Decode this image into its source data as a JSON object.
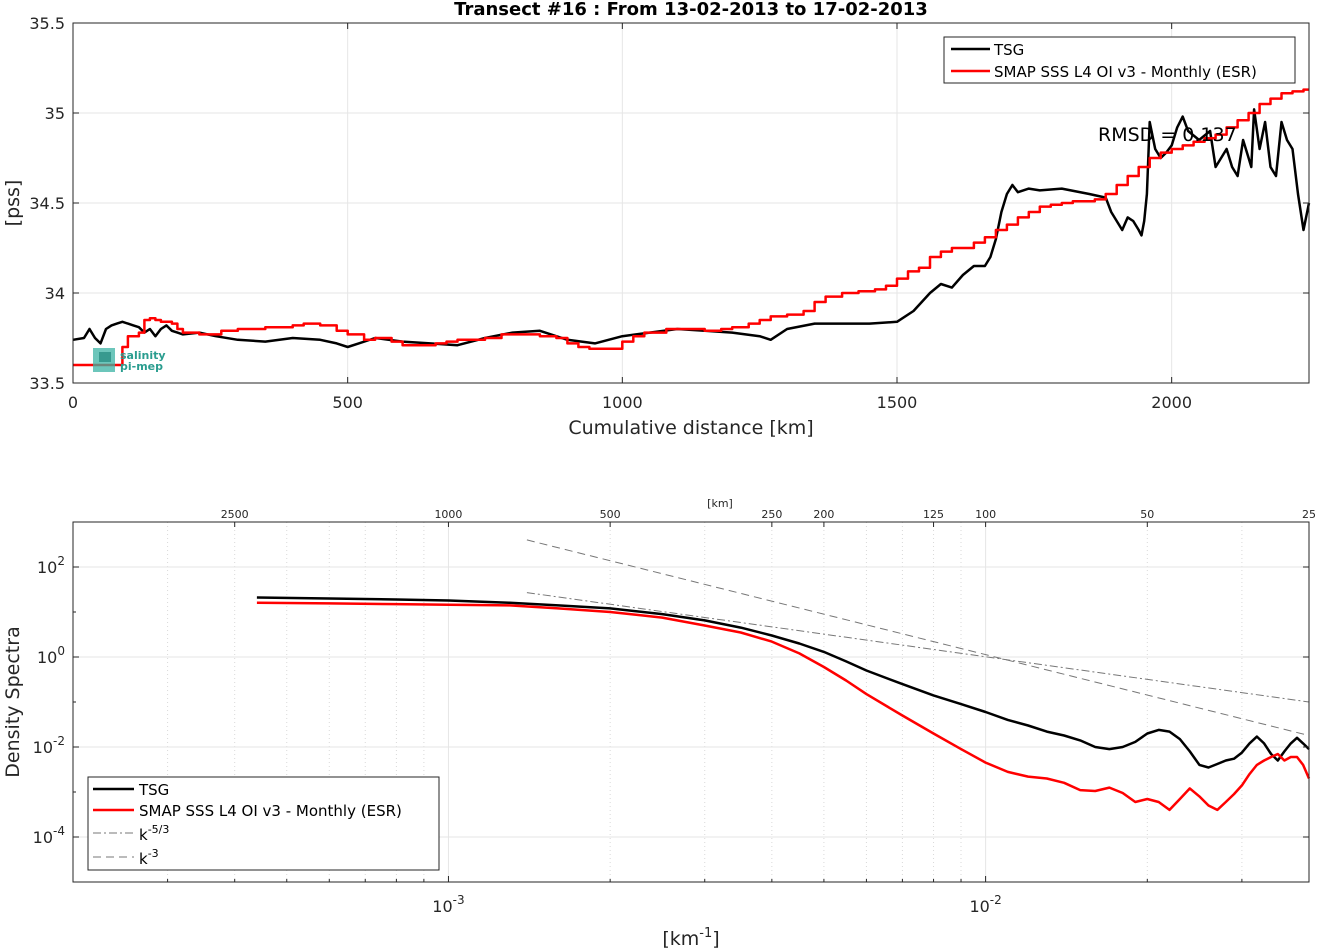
{
  "figure": {
    "background": "#ffffff"
  },
  "chart_data": [
    {
      "type": "line",
      "title": "Transect #16 : From 13-02-2013 to 17-02-2013",
      "xlabel": "Cumulative distance [km]",
      "ylabel": "[pss]",
      "xlim": [
        0,
        2250
      ],
      "ylim": [
        33.5,
        35.5
      ],
      "xticks": [
        0,
        500,
        1000,
        1500,
        2000
      ],
      "yticks": [
        33.5,
        34,
        34.5,
        35,
        35.5
      ],
      "grid": true,
      "legend_position": "top-right",
      "annotation": "RMSD = 0.137",
      "logo_text": [
        "salinity",
        "pi-mep"
      ],
      "series": [
        {
          "name": "TSG",
          "color": "#000000",
          "style": "solid",
          "x": [
            0,
            20,
            30,
            40,
            50,
            60,
            70,
            80,
            90,
            100,
            110,
            120,
            130,
            140,
            150,
            160,
            170,
            180,
            190,
            200,
            230,
            260,
            300,
            350,
            400,
            450,
            480,
            500,
            520,
            550,
            600,
            650,
            700,
            750,
            800,
            850,
            900,
            950,
            1000,
            1050,
            1100,
            1150,
            1200,
            1250,
            1270,
            1300,
            1350,
            1400,
            1450,
            1500,
            1530,
            1560,
            1580,
            1600,
            1620,
            1640,
            1660,
            1670,
            1680,
            1690,
            1700,
            1710,
            1720,
            1740,
            1760,
            1800,
            1850,
            1880,
            1890,
            1900,
            1910,
            1920,
            1930,
            1940,
            1945,
            1950,
            1955,
            1960,
            1970,
            1980,
            1990,
            2000,
            2010,
            2020,
            2030,
            2050,
            2070,
            2080,
            2090,
            2100,
            2110,
            2120,
            2130,
            2140,
            2145,
            2150,
            2160,
            2170,
            2180,
            2190,
            2200,
            2210,
            2220,
            2230,
            2240,
            2250
          ],
          "y": [
            33.74,
            33.75,
            33.8,
            33.75,
            33.72,
            33.8,
            33.82,
            33.83,
            33.84,
            33.83,
            33.82,
            33.81,
            33.78,
            33.8,
            33.76,
            33.8,
            33.82,
            33.79,
            33.78,
            33.77,
            33.78,
            33.76,
            33.74,
            33.73,
            33.75,
            33.74,
            33.72,
            33.7,
            33.72,
            33.75,
            33.73,
            33.72,
            33.71,
            33.75,
            33.78,
            33.79,
            33.74,
            33.72,
            33.76,
            33.78,
            33.8,
            33.79,
            33.78,
            33.76,
            33.74,
            33.8,
            33.83,
            33.83,
            33.83,
            33.84,
            33.9,
            34.0,
            34.05,
            34.03,
            34.1,
            34.15,
            34.15,
            34.2,
            34.3,
            34.45,
            34.55,
            34.6,
            34.56,
            34.58,
            34.57,
            34.58,
            34.55,
            34.53,
            34.45,
            34.4,
            34.35,
            34.42,
            34.4,
            34.35,
            34.32,
            34.4,
            34.55,
            34.95,
            34.8,
            34.75,
            34.78,
            34.82,
            34.92,
            34.98,
            34.9,
            34.85,
            34.9,
            34.7,
            34.75,
            34.8,
            34.7,
            34.65,
            34.85,
            34.75,
            34.7,
            35.02,
            34.8,
            34.95,
            34.7,
            34.65,
            34.95,
            34.85,
            34.8,
            34.55,
            34.35,
            34.5
          ]
        },
        {
          "name": "SMAP SSS L4 OI v3 - Monthly (ESR)",
          "color": "#ff0000",
          "style": "step",
          "x": [
            0,
            20,
            40,
            60,
            80,
            90,
            100,
            110,
            120,
            130,
            140,
            150,
            160,
            180,
            190,
            200,
            230,
            270,
            300,
            350,
            400,
            420,
            450,
            480,
            500,
            530,
            550,
            580,
            600,
            620,
            640,
            660,
            680,
            700,
            750,
            780,
            800,
            850,
            880,
            900,
            920,
            940,
            960,
            980,
            1000,
            1020,
            1040,
            1060,
            1080,
            1100,
            1120,
            1150,
            1180,
            1200,
            1230,
            1250,
            1270,
            1300,
            1330,
            1350,
            1370,
            1400,
            1430,
            1460,
            1480,
            1500,
            1520,
            1540,
            1560,
            1580,
            1600,
            1620,
            1640,
            1660,
            1680,
            1700,
            1720,
            1740,
            1760,
            1780,
            1800,
            1820,
            1840,
            1860,
            1880,
            1900,
            1920,
            1940,
            1960,
            1980,
            2000,
            2020,
            2040,
            2060,
            2080,
            2100,
            2120,
            2140,
            2160,
            2180,
            2200,
            2220,
            2240,
            2250
          ],
          "y": [
            33.6,
            33.6,
            33.6,
            33.6,
            33.6,
            33.7,
            33.76,
            33.76,
            33.78,
            33.85,
            33.86,
            33.85,
            33.84,
            33.83,
            33.8,
            33.78,
            33.77,
            33.79,
            33.8,
            33.81,
            33.82,
            33.83,
            33.82,
            33.79,
            33.77,
            33.74,
            33.75,
            33.73,
            33.71,
            33.71,
            33.71,
            33.72,
            33.73,
            33.74,
            33.75,
            33.77,
            33.77,
            33.76,
            33.75,
            33.72,
            33.7,
            33.69,
            33.69,
            33.69,
            33.73,
            33.76,
            33.78,
            33.78,
            33.8,
            33.8,
            33.8,
            33.79,
            33.8,
            33.81,
            33.83,
            33.85,
            33.87,
            33.88,
            33.9,
            33.95,
            33.98,
            34.0,
            34.01,
            34.02,
            34.04,
            34.08,
            34.12,
            34.14,
            34.2,
            34.23,
            34.25,
            34.25,
            34.28,
            34.31,
            34.35,
            34.38,
            34.42,
            34.45,
            34.48,
            34.49,
            34.5,
            34.51,
            34.51,
            34.52,
            34.55,
            34.6,
            34.65,
            34.7,
            34.75,
            34.78,
            34.8,
            34.82,
            34.84,
            34.86,
            34.88,
            34.92,
            34.96,
            35.0,
            35.05,
            35.08,
            35.11,
            35.12,
            35.13,
            35.13
          ]
        }
      ]
    },
    {
      "type": "line",
      "title": "",
      "xlabel": "[km-1]",
      "xlabel_base": "[km",
      "xlabel_sup": "-1",
      "xlabel_end": "]",
      "ylabel": "Density Spectra",
      "x_scale": "log",
      "y_scale": "log",
      "xlim": [
        0.0002,
        0.04
      ],
      "ylim": [
        1e-05,
        1000
      ],
      "xticks": [
        {
          "value": 0.001,
          "base": "10",
          "exp": "-3"
        },
        {
          "value": 0.01,
          "base": "10",
          "exp": "-2"
        }
      ],
      "yticks": [
        {
          "value": 100,
          "base": "10",
          "exp": "2"
        },
        {
          "value": 1,
          "base": "10",
          "exp": "0"
        },
        {
          "value": 0.01,
          "base": "10",
          "exp": "-2"
        },
        {
          "value": 0.0001,
          "base": "10",
          "exp": "-4"
        }
      ],
      "top_axis_label": "[km]",
      "top_ticks": [
        "2500",
        "1000",
        "500",
        "250",
        "200",
        "125",
        "100",
        "50",
        "25"
      ],
      "grid": true,
      "legend_position": "bottom-left",
      "series": [
        {
          "name": "TSG",
          "color": "#000000",
          "style": "solid",
          "x": [
            0.00044,
            0.0006,
            0.0008,
            0.001,
            0.0013,
            0.0016,
            0.002,
            0.0025,
            0.003,
            0.0035,
            0.004,
            0.0045,
            0.005,
            0.0055,
            0.006,
            0.007,
            0.008,
            0.009,
            0.01,
            0.011,
            0.012,
            0.013,
            0.014,
            0.015,
            0.016,
            0.017,
            0.018,
            0.019,
            0.02,
            0.021,
            0.022,
            0.023,
            0.024,
            0.025,
            0.026,
            0.027,
            0.028,
            0.029,
            0.03,
            0.031,
            0.032,
            0.033,
            0.034,
            0.035,
            0.036,
            0.037,
            0.038,
            0.039,
            0.04
          ],
          "y": [
            21,
            20,
            19,
            18,
            16,
            14,
            12,
            9,
            6.5,
            4.5,
            3,
            2,
            1.3,
            0.8,
            0.5,
            0.25,
            0.14,
            0.09,
            0.06,
            0.04,
            0.03,
            0.022,
            0.018,
            0.014,
            0.01,
            0.009,
            0.01,
            0.013,
            0.02,
            0.024,
            0.022,
            0.015,
            0.008,
            0.004,
            0.0035,
            0.0042,
            0.005,
            0.0055,
            0.0075,
            0.012,
            0.017,
            0.012,
            0.007,
            0.005,
            0.008,
            0.012,
            0.016,
            0.012,
            0.009
          ]
        },
        {
          "name": "SMAP SSS L4 OI v3 - Monthly (ESR)",
          "color": "#ff0000",
          "style": "solid",
          "x": [
            0.00044,
            0.0006,
            0.0008,
            0.001,
            0.0013,
            0.0016,
            0.002,
            0.0025,
            0.003,
            0.0035,
            0.004,
            0.0045,
            0.005,
            0.0055,
            0.006,
            0.007,
            0.008,
            0.009,
            0.01,
            0.011,
            0.012,
            0.013,
            0.014,
            0.015,
            0.016,
            0.017,
            0.018,
            0.019,
            0.02,
            0.021,
            0.022,
            0.023,
            0.024,
            0.025,
            0.026,
            0.027,
            0.028,
            0.029,
            0.03,
            0.031,
            0.032,
            0.033,
            0.034,
            0.035,
            0.036,
            0.037,
            0.038,
            0.039,
            0.04
          ],
          "y": [
            16,
            15.5,
            15,
            14.5,
            14,
            12,
            10,
            7.5,
            5,
            3.5,
            2.2,
            1.2,
            0.6,
            0.3,
            0.15,
            0.05,
            0.02,
            0.009,
            0.0045,
            0.0028,
            0.0022,
            0.002,
            0.0016,
            0.0011,
            0.00105,
            0.00125,
            0.00095,
            0.0006,
            0.0007,
            0.0006,
            0.0004,
            0.0007,
            0.0012,
            0.0008,
            0.0005,
            0.0004,
            0.0006,
            0.0009,
            0.0014,
            0.0025,
            0.004,
            0.005,
            0.006,
            0.007,
            0.005,
            0.006,
            0.006,
            0.004,
            0.002
          ]
        },
        {
          "name": "k-5/3",
          "label_base": "k",
          "label_sup": "-5/3",
          "color": "#777777",
          "style": "dashdot",
          "x": [
            0.0014,
            0.04
          ],
          "y": [
            27,
            0.1
          ]
        },
        {
          "name": "k-3",
          "label_base": "k",
          "label_sup": "-3",
          "color": "#777777",
          "style": "dashed",
          "x": [
            0.0014,
            0.04
          ],
          "y": [
            400,
            0.018
          ]
        }
      ]
    }
  ]
}
